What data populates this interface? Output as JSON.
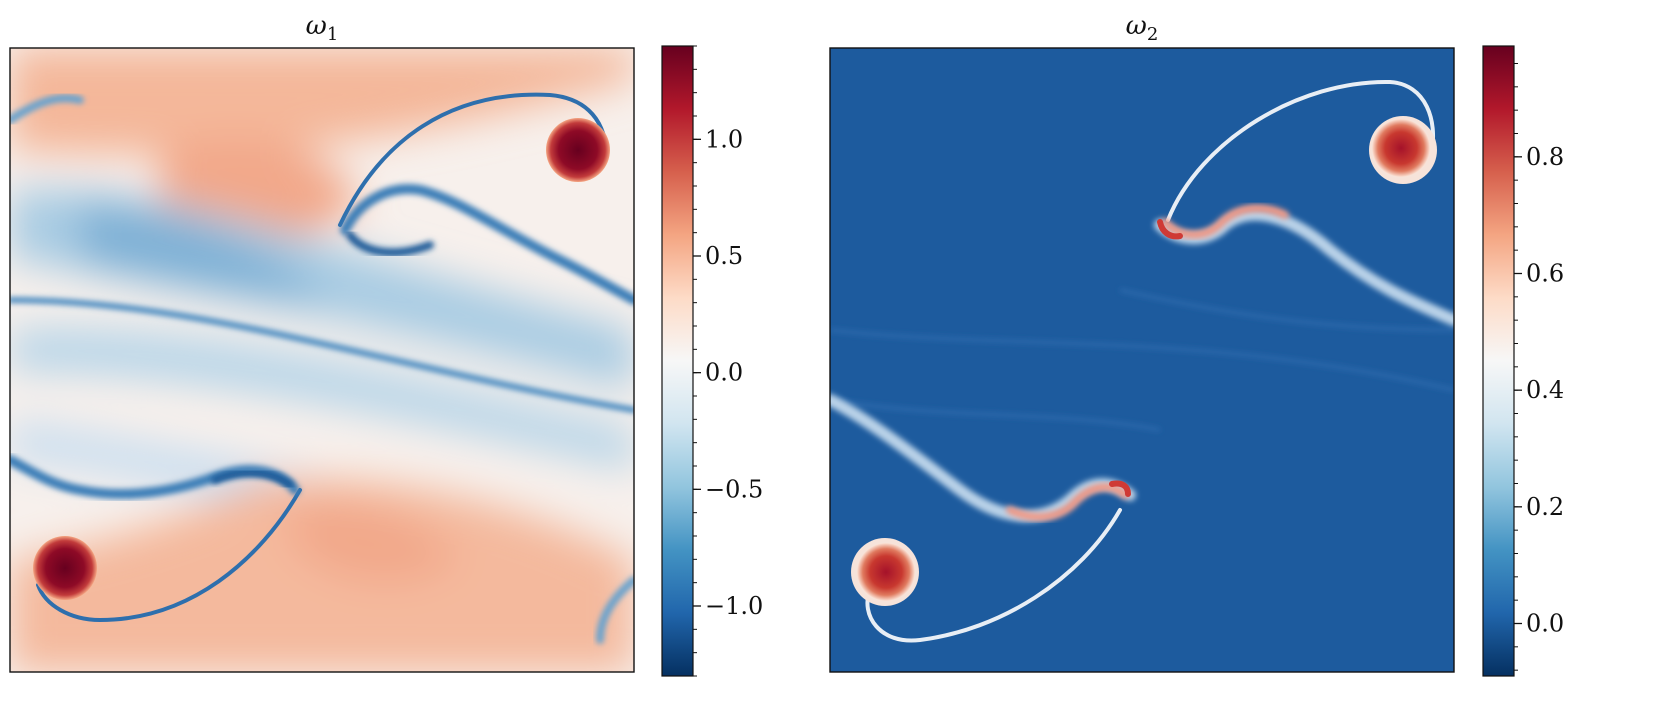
{
  "chart_data": [
    {
      "type": "heatmap",
      "title": "ω1",
      "title_symbol": "ω",
      "title_subscript": "1",
      "colormap": "RdBu_r",
      "colorbar": {
        "range": [
          -1.3,
          1.4
        ],
        "ticks": [
          -1.0,
          -0.5,
          0.0,
          0.5,
          1.0
        ],
        "tick_labels": [
          "−1.0",
          "−0.5",
          "0.0",
          "0.5",
          "1.0"
        ]
      },
      "features": [
        {
          "kind": "vortex",
          "sign": "positive",
          "value": 1.4,
          "location": "upper-right"
        },
        {
          "kind": "vortex",
          "sign": "positive",
          "value": 1.4,
          "location": "lower-left"
        },
        {
          "kind": "filament",
          "sign": "negative",
          "value": -1.0,
          "location": "upper-center"
        },
        {
          "kind": "filament",
          "sign": "negative",
          "value": -1.0,
          "location": "lower-center"
        }
      ]
    },
    {
      "type": "heatmap",
      "title": "ω2",
      "title_symbol": "ω",
      "title_subscript": "2",
      "colormap": "RdBu_r",
      "colorbar": {
        "range": [
          -0.09,
          0.99
        ],
        "ticks": [
          0.0,
          0.2,
          0.4,
          0.6,
          0.8
        ],
        "tick_labels": [
          "0.0",
          "0.2",
          "0.4",
          "0.6",
          "0.8"
        ]
      },
      "background_value": 0.07,
      "features": [
        {
          "kind": "vortex",
          "value": 0.99,
          "location": "upper-right"
        },
        {
          "kind": "vortex",
          "value": 0.99,
          "location": "lower-left"
        },
        {
          "kind": "filament",
          "value": 0.6,
          "location": "upper-center"
        },
        {
          "kind": "filament",
          "value": 0.6,
          "location": "lower-center"
        }
      ]
    }
  ]
}
